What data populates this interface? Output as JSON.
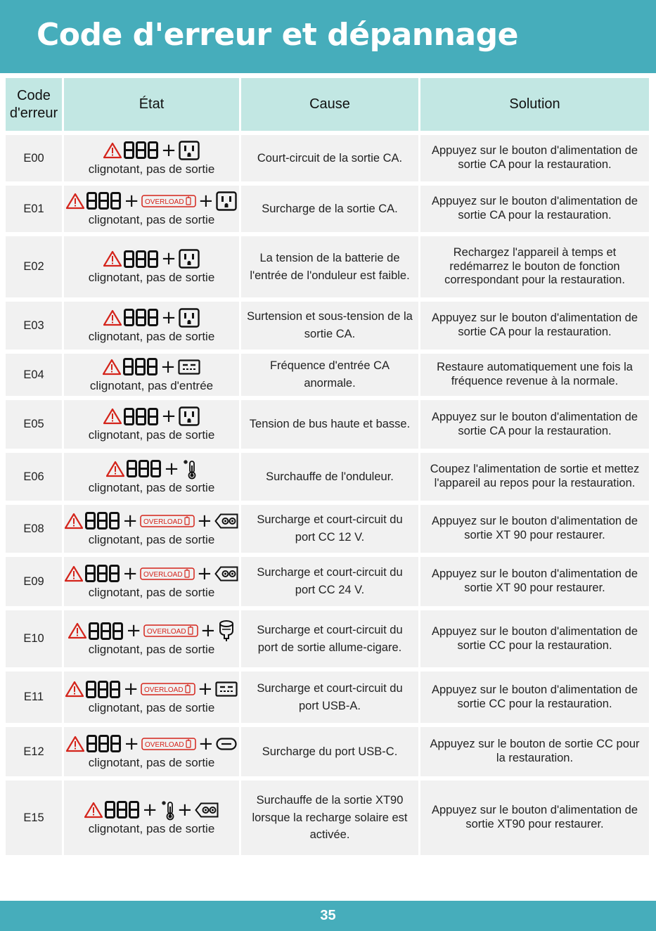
{
  "title": "Code d'erreur et dépannage",
  "columns": [
    "Code d'erreur",
    "État",
    "Cause",
    "Solution"
  ],
  "icon_labels": {
    "overload": "OVERLOAD",
    "digits": "888"
  },
  "colors": {
    "brand": "#46adbb",
    "header_cell": "#c2e7e3",
    "row_bg": "#f1f1f1",
    "warning_red": "#d4241b"
  },
  "rows": [
    {
      "code": "E00",
      "icons": [
        "warning-icon",
        "digits-888-icon",
        "ac-outlet-icon"
      ],
      "state": "clignotant, pas de sortie",
      "cause": "Court-circuit de la sortie CA.",
      "solution": "Appuyez sur le bouton d'alimentation de sortie CA pour la restauration."
    },
    {
      "code": "E01",
      "icons": [
        "warning-icon",
        "digits-888-icon",
        "overload-icon",
        "ac-outlet-icon"
      ],
      "state": "clignotant, pas de sortie",
      "cause": "Surcharge de la sortie CA.",
      "solution": "Appuyez sur le bouton d'alimentation de sortie CA pour la restauration."
    },
    {
      "code": "E02",
      "icons": [
        "warning-icon",
        "digits-888-icon",
        "ac-outlet-icon"
      ],
      "state": "clignotant, pas de sortie",
      "cause": "La tension de la batterie de l'entrée de l'onduleur est faible.",
      "solution": "Rechargez l'appareil à temps et redémarrez le bouton de fonction correspondant pour la restauration."
    },
    {
      "code": "E03",
      "icons": [
        "warning-icon",
        "digits-888-icon",
        "ac-outlet-icon"
      ],
      "state": "clignotant, pas de sortie",
      "cause": "Surtension et sous-tension de la sortie CA.",
      "solution": "Appuyez sur le bouton d'alimentation de sortie CA pour la restauration."
    },
    {
      "code": "E04",
      "icons": [
        "warning-icon",
        "digits-888-icon",
        "ac-input-icon"
      ],
      "state": "clignotant, pas d'entrée",
      "cause": "Fréquence d'entrée CA anormale.",
      "solution": "Restaure automatiquement une fois la fréquence revenue à la normale."
    },
    {
      "code": "E05",
      "icons": [
        "warning-icon",
        "digits-888-icon",
        "ac-outlet-icon"
      ],
      "state": "clignotant, pas de sortie",
      "cause": "Tension de bus haute et basse.",
      "solution": "Appuyez sur le bouton d'alimentation de sortie CA pour la restauration."
    },
    {
      "code": "E06",
      "icons": [
        "warning-icon",
        "digits-888-icon",
        "thermometer-icon"
      ],
      "state": "clignotant, pas de sortie",
      "cause": "Surchauffe de l'onduleur.",
      "solution": "Coupez l'alimentation de sortie et mettez l'appareil au repos pour la restauration."
    },
    {
      "code": "E08",
      "icons": [
        "warning-icon",
        "digits-888-icon",
        "overload-icon",
        "dc-port-icon"
      ],
      "state": "clignotant, pas de sortie",
      "cause": "Surcharge et court-circuit du port CC 12 V.",
      "solution": "Appuyez sur le bouton d'alimentation de sortie XT 90 pour restaurer."
    },
    {
      "code": "E09",
      "icons": [
        "warning-icon",
        "digits-888-icon",
        "overload-icon",
        "dc-port-icon"
      ],
      "state": "clignotant, pas de sortie",
      "cause": "Surcharge et court-circuit du port CC 24 V.",
      "solution": "Appuyez sur le bouton d'alimentation de sortie XT 90 pour restaurer."
    },
    {
      "code": "E10",
      "icons": [
        "warning-icon",
        "digits-888-icon",
        "overload-icon",
        "car-socket-icon"
      ],
      "state": "clignotant, pas de sortie",
      "cause": "Surcharge et court-circuit du port de sortie allume-cigare.",
      "solution": "Appuyez sur le bouton d'alimentation de sortie CC pour la restauration."
    },
    {
      "code": "E11",
      "icons": [
        "warning-icon",
        "digits-888-icon",
        "overload-icon",
        "usb-a-icon"
      ],
      "state": "clignotant, pas de sortie",
      "cause": "Surcharge et court-circuit du port USB-A.",
      "solution": "Appuyez sur le bouton d'alimentation de sortie CC pour la restauration."
    },
    {
      "code": "E12",
      "icons": [
        "warning-icon",
        "digits-888-icon",
        "overload-icon",
        "usb-c-icon"
      ],
      "state": "clignotant, pas de sortie",
      "cause": "Surcharge du port USB-C.",
      "solution": "Appuyez sur le bouton de sortie CC pour la restauration."
    },
    {
      "code": "E15",
      "icons": [
        "warning-icon",
        "digits-888-icon",
        "thermometer-icon",
        "dc-port-icon"
      ],
      "state": "clignotant, pas de sortie",
      "cause": "Surchauffe de la sortie XT90 lorsque la recharge solaire est activée.",
      "solution": "Appuyez sur le bouton d'alimentation de sortie XT90 pour restaurer."
    }
  ],
  "page_number": "35"
}
